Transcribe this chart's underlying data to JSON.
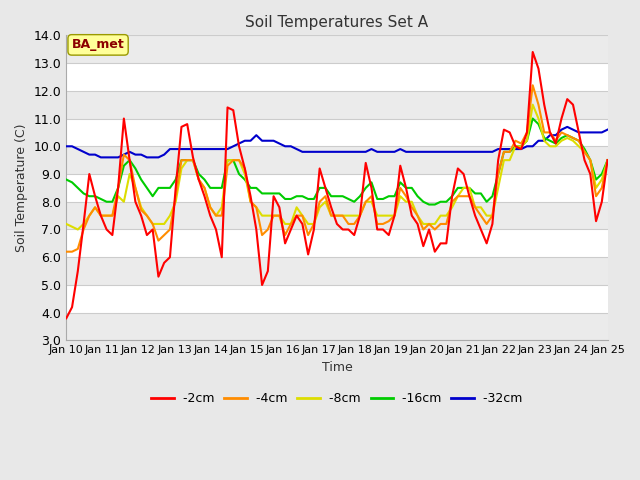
{
  "title": "Soil Temperatures Set A",
  "xlabel": "Time",
  "ylabel": "Soil Temperature (C)",
  "ylim": [
    3.0,
    14.0
  ],
  "yticks": [
    3.0,
    4.0,
    5.0,
    6.0,
    7.0,
    8.0,
    9.0,
    10.0,
    11.0,
    12.0,
    13.0,
    14.0
  ],
  "xtick_labels": [
    "Jan 10",
    "Jan 11",
    "Jan 12",
    "Jan 13",
    "Jan 14",
    "Jan 15",
    "Jan 16",
    "Jan 17",
    "Jan 18",
    "Jan 19",
    "Jan 20",
    "Jan 21",
    "Jan 22",
    "Jan 23",
    "Jan 24",
    "Jan 25"
  ],
  "annotation": "BA_met",
  "annotation_color": "#8B0000",
  "annotation_bg": "#FFFF99",
  "annotation_edge": "#999900",
  "fig_bg": "#E8E8E8",
  "plot_bg": "#FFFFFF",
  "grid_color": "#CCCCCC",
  "colors": {
    "-2cm": "#FF0000",
    "-4cm": "#FF8C00",
    "-8cm": "#DDDD00",
    "-16cm": "#00CC00",
    "-32cm": "#0000CC"
  },
  "series": {
    "-2cm": [
      3.8,
      4.2,
      5.5,
      7.2,
      9.0,
      8.2,
      7.5,
      7.0,
      6.8,
      8.5,
      11.0,
      9.5,
      8.0,
      7.5,
      6.8,
      7.0,
      5.3,
      5.8,
      6.0,
      8.5,
      10.7,
      10.8,
      9.6,
      8.8,
      8.2,
      7.5,
      7.0,
      6.0,
      11.4,
      11.3,
      10.0,
      9.2,
      8.2,
      7.0,
      5.0,
      5.5,
      8.2,
      7.8,
      6.5,
      7.0,
      7.5,
      7.2,
      6.1,
      7.0,
      9.2,
      8.5,
      7.8,
      7.2,
      7.0,
      7.0,
      6.8,
      7.5,
      9.4,
      8.5,
      7.0,
      7.0,
      6.8,
      7.5,
      9.3,
      8.5,
      7.5,
      7.2,
      6.4,
      7.0,
      6.2,
      6.5,
      6.5,
      8.2,
      9.2,
      9.0,
      8.2,
      7.5,
      7.0,
      6.5,
      7.2,
      9.5,
      10.6,
      10.5,
      10.0,
      9.9,
      10.5,
      13.4,
      12.8,
      11.5,
      10.5,
      10.1,
      11.0,
      11.7,
      11.5,
      10.5,
      9.5,
      9.0,
      7.3,
      8.0,
      9.5
    ],
    "-4cm": [
      6.2,
      6.2,
      6.3,
      7.0,
      7.5,
      7.8,
      7.5,
      7.5,
      7.5,
      8.5,
      9.7,
      9.5,
      8.5,
      7.7,
      7.5,
      7.2,
      6.6,
      6.8,
      7.0,
      8.2,
      9.5,
      9.5,
      9.5,
      8.8,
      8.5,
      7.8,
      7.5,
      7.5,
      9.3,
      9.5,
      9.5,
      9.2,
      8.0,
      7.8,
      6.8,
      7.0,
      7.5,
      7.5,
      6.8,
      7.2,
      7.5,
      7.5,
      6.8,
      7.2,
      8.0,
      8.2,
      7.5,
      7.5,
      7.5,
      7.2,
      7.2,
      7.5,
      8.0,
      8.2,
      7.2,
      7.2,
      7.3,
      7.5,
      8.5,
      8.2,
      7.8,
      7.5,
      7.0,
      7.2,
      7.0,
      7.2,
      7.2,
      8.0,
      8.2,
      8.2,
      8.2,
      7.8,
      7.5,
      7.2,
      7.5,
      9.0,
      9.8,
      9.8,
      10.2,
      10.1,
      10.5,
      12.2,
      11.5,
      10.5,
      10.5,
      10.2,
      10.5,
      10.4,
      10.3,
      10.2,
      9.8,
      9.5,
      8.2,
      8.5,
      9.5
    ],
    "-8cm": [
      7.2,
      7.1,
      7.0,
      7.2,
      7.5,
      7.8,
      7.5,
      7.5,
      7.5,
      8.2,
      8.0,
      9.0,
      8.5,
      7.8,
      7.5,
      7.2,
      7.2,
      7.2,
      7.5,
      8.0,
      9.2,
      9.5,
      9.5,
      8.8,
      8.5,
      7.8,
      7.5,
      7.8,
      9.5,
      9.5,
      9.5,
      9.0,
      8.0,
      7.8,
      7.5,
      7.5,
      7.5,
      7.5,
      7.2,
      7.2,
      7.8,
      7.5,
      7.2,
      7.2,
      7.8,
      8.0,
      7.5,
      7.5,
      7.5,
      7.5,
      7.5,
      7.5,
      8.0,
      8.0,
      7.5,
      7.5,
      7.5,
      7.5,
      8.2,
      8.0,
      8.0,
      7.5,
      7.2,
      7.2,
      7.2,
      7.5,
      7.5,
      7.8,
      8.2,
      8.5,
      8.5,
      7.8,
      7.8,
      7.5,
      7.5,
      8.5,
      9.5,
      9.5,
      10.0,
      10.0,
      10.2,
      11.5,
      11.0,
      10.2,
      10.0,
      10.0,
      10.2,
      10.3,
      10.2,
      10.0,
      9.8,
      9.5,
      8.5,
      8.8,
      9.5
    ],
    "-16cm": [
      8.8,
      8.7,
      8.5,
      8.3,
      8.2,
      8.2,
      8.1,
      8.0,
      8.0,
      8.5,
      9.3,
      9.5,
      9.2,
      8.8,
      8.5,
      8.2,
      8.5,
      8.5,
      8.5,
      8.8,
      9.5,
      9.5,
      9.5,
      9.0,
      8.8,
      8.5,
      8.5,
      8.5,
      9.5,
      9.5,
      9.0,
      8.8,
      8.5,
      8.5,
      8.3,
      8.3,
      8.3,
      8.3,
      8.1,
      8.1,
      8.2,
      8.2,
      8.1,
      8.1,
      8.5,
      8.5,
      8.2,
      8.2,
      8.2,
      8.1,
      8.0,
      8.2,
      8.5,
      8.7,
      8.1,
      8.1,
      8.2,
      8.2,
      8.7,
      8.5,
      8.5,
      8.2,
      8.0,
      7.9,
      7.9,
      8.0,
      8.0,
      8.2,
      8.5,
      8.5,
      8.5,
      8.3,
      8.3,
      8.0,
      8.2,
      9.0,
      9.8,
      9.8,
      10.0,
      10.0,
      10.2,
      11.0,
      10.8,
      10.3,
      10.2,
      10.1,
      10.3,
      10.4,
      10.3,
      10.2,
      9.9,
      9.5,
      8.8,
      9.0,
      9.5
    ],
    "-32cm": [
      10.0,
      10.0,
      9.9,
      9.8,
      9.7,
      9.7,
      9.6,
      9.6,
      9.6,
      9.6,
      9.7,
      9.8,
      9.7,
      9.7,
      9.6,
      9.6,
      9.6,
      9.7,
      9.9,
      9.9,
      9.9,
      9.9,
      9.9,
      9.9,
      9.9,
      9.9,
      9.9,
      9.9,
      9.9,
      10.0,
      10.1,
      10.2,
      10.2,
      10.4,
      10.2,
      10.2,
      10.2,
      10.1,
      10.0,
      10.0,
      9.9,
      9.8,
      9.8,
      9.8,
      9.8,
      9.8,
      9.8,
      9.8,
      9.8,
      9.8,
      9.8,
      9.8,
      9.8,
      9.9,
      9.8,
      9.8,
      9.8,
      9.8,
      9.9,
      9.8,
      9.8,
      9.8,
      9.8,
      9.8,
      9.8,
      9.8,
      9.8,
      9.8,
      9.8,
      9.8,
      9.8,
      9.8,
      9.8,
      9.8,
      9.8,
      9.9,
      9.9,
      9.9,
      9.9,
      9.9,
      10.0,
      10.0,
      10.2,
      10.2,
      10.4,
      10.4,
      10.6,
      10.7,
      10.6,
      10.5,
      10.5,
      10.5,
      10.5,
      10.5,
      10.6
    ]
  }
}
